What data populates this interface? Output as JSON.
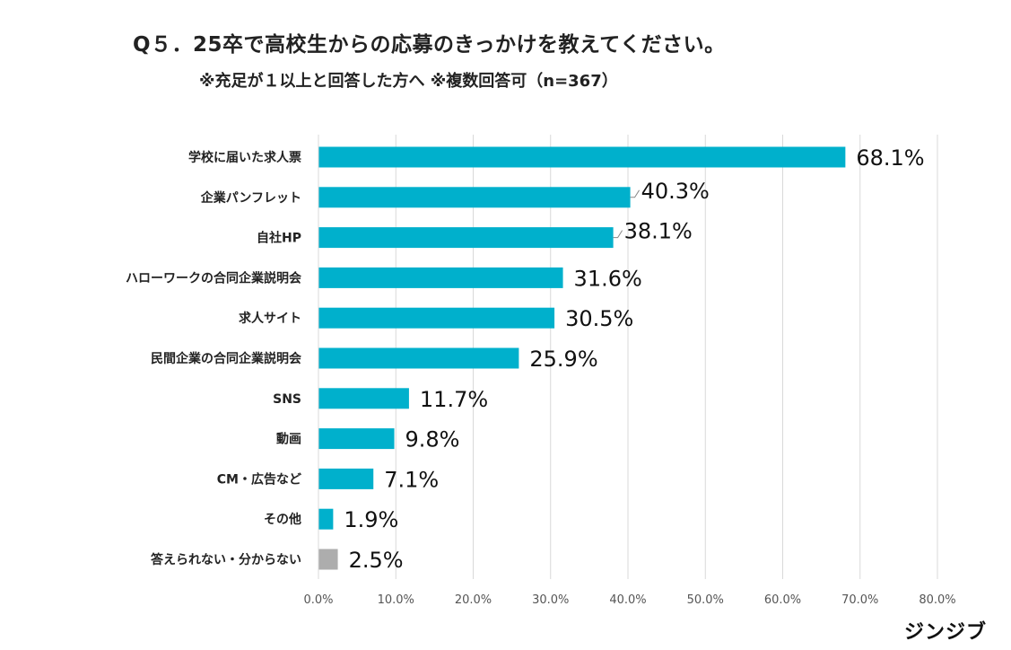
{
  "header": {
    "title": "Q５．25卒で高校生からの応募のきっかけを教えてください。",
    "subtitle": "※充足が１以上と回答した方へ ※複数回答可（n=367）"
  },
  "logo": {
    "text": "ジンジブ"
  },
  "colors": {
    "bar": "#00B0CC",
    "bar_other": "#ADADAD",
    "grid": "#D9D9D9",
    "text": "#222222",
    "tick": "#555555"
  },
  "chart_data": {
    "type": "bar",
    "orientation": "horizontal",
    "title": "Q５．25卒で高校生からの応募のきっかけを教えてください。",
    "subtitle": "※充足が１以上と回答した方へ ※複数回答可（n=367）",
    "categories": [
      "学校に届いた求人票",
      "企業パンフレット",
      "自社HP",
      "ハローワークの合同企業説明会",
      "求人サイト",
      "民間企業の合同企業説明会",
      "SNS",
      "動画",
      "CM・広告など",
      "その他",
      "答えられない・分からない"
    ],
    "values": [
      68.1,
      40.3,
      38.1,
      31.6,
      30.5,
      25.9,
      11.7,
      9.8,
      7.1,
      1.9,
      2.5
    ],
    "value_labels": [
      "68.1%",
      "40.3%",
      "38.1%",
      "31.6%",
      "30.5%",
      "25.9%",
      "11.7%",
      "9.8%",
      "7.1%",
      "1.9%",
      "2.5%"
    ],
    "bar_colors": [
      "#00B0CC",
      "#00B0CC",
      "#00B0CC",
      "#00B0CC",
      "#00B0CC",
      "#00B0CC",
      "#00B0CC",
      "#00B0CC",
      "#00B0CC",
      "#00B0CC",
      "#ADADAD"
    ],
    "xlim": [
      0,
      80
    ],
    "x_ticks": [
      0,
      10,
      20,
      30,
      40,
      50,
      60,
      70,
      80
    ],
    "x_tick_labels": [
      "0.0%",
      "10.0%",
      "20.0%",
      "30.0%",
      "40.0%",
      "50.0%",
      "60.0%",
      "70.0%",
      "80.0%"
    ],
    "grid": true,
    "legend": "none",
    "xlabel": "",
    "ylabel": ""
  }
}
